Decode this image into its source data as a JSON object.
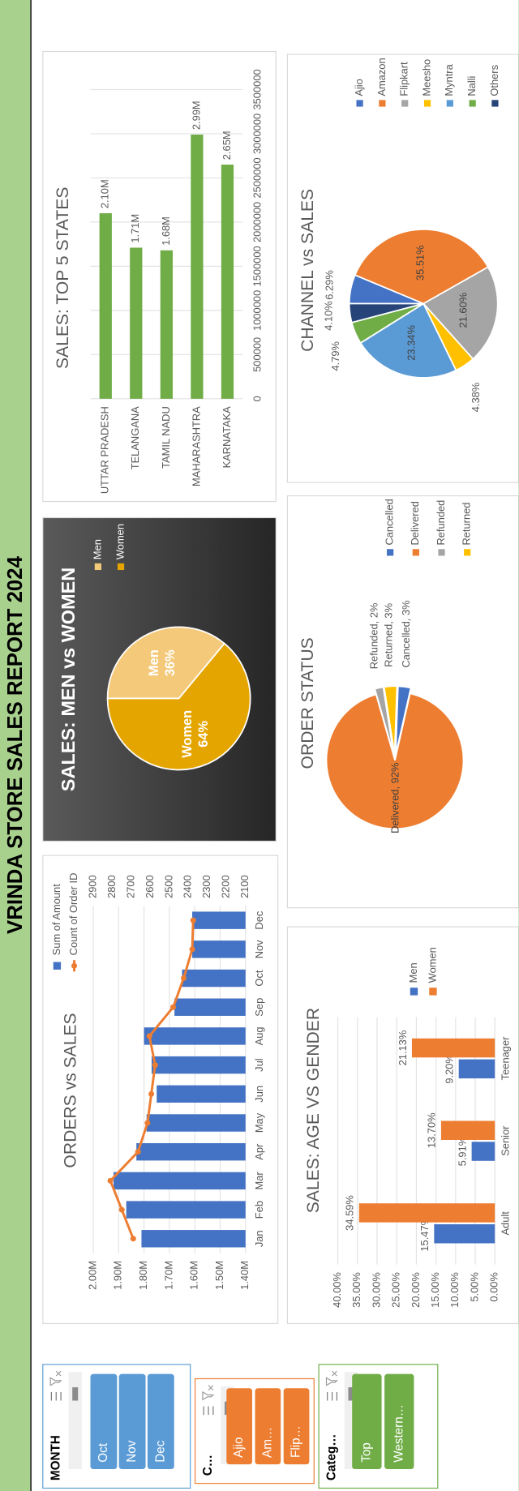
{
  "header": {
    "title": "VRINDA STORE SALES REPORT 2024"
  },
  "chart_data": [
    {
      "type": "combo",
      "title": "ORDERS vs SALES",
      "categories": [
        "Jan",
        "Feb",
        "Mar",
        "Apr",
        "May",
        "Jun",
        "Jul",
        "Aug",
        "Sep",
        "Oct",
        "Nov",
        "Dec"
      ],
      "series": [
        {
          "name": "Sum of Amount",
          "type": "bar",
          "color": "#4472c4",
          "values": [
            1810000,
            1870000,
            1920000,
            1830000,
            1790000,
            1750000,
            1770000,
            1800000,
            1680000,
            1650000,
            1610000,
            1610000
          ]
        },
        {
          "name": "Count of Order ID",
          "type": "line",
          "axis": "y2",
          "color": "#ed7d31",
          "values": [
            2690,
            2750,
            2810,
            2665,
            2615,
            2595,
            2575,
            2605,
            2480,
            2425,
            2380,
            2375
          ]
        }
      ],
      "ylim": [
        1400000,
        2000000
      ],
      "yticks": [
        {
          "value": 1400000,
          "label": "1.40M"
        },
        {
          "value": 1500000,
          "label": "1.50M"
        },
        {
          "value": 1600000,
          "label": "1.60M"
        },
        {
          "value": 1700000,
          "label": "1.70M"
        },
        {
          "value": 1800000,
          "label": "1.80M"
        },
        {
          "value": 1900000,
          "label": "1.90M"
        },
        {
          "value": 2000000,
          "label": "2.00M"
        }
      ],
      "y2lim": [
        2100,
        2900
      ],
      "y2ticks": [
        2100,
        2200,
        2300,
        2400,
        2500,
        2600,
        2700,
        2800,
        2900
      ],
      "grid": true
    },
    {
      "type": "pie",
      "title": "SALES: MEN vs WOMEN",
      "categories": [
        "Men",
        "Women"
      ],
      "values": [
        36,
        64
      ],
      "value_labels": [
        "36%",
        "64%"
      ],
      "colors": [
        "#f5c97a",
        "#e5a500"
      ]
    },
    {
      "type": "hbar",
      "title": "SALES: TOP 5 STATES",
      "categories": [
        "UTTAR PRADESH",
        "TELANGANA",
        "TAMIL NADU",
        "MAHARASHTRA",
        "KARNATAKA"
      ],
      "values": [
        2100000,
        1710000,
        1680000,
        2990000,
        2650000
      ],
      "value_labels": [
        "2.10M",
        "1.71M",
        "1.68M",
        "2.99M",
        "2.65M"
      ],
      "color": "#70ad47",
      "xlim": [
        0,
        3500000
      ],
      "xticks": [
        0,
        500000,
        1000000,
        1500000,
        2000000,
        2500000,
        3000000,
        3500000
      ],
      "grid": true
    },
    {
      "type": "bar",
      "title": "SALES: AGE VS GENDER",
      "categories": [
        "Adult",
        "Senior",
        "Teenager"
      ],
      "series": [
        {
          "name": "Men",
          "color": "#4472c4",
          "values": [
            15.47,
            5.91,
            9.2
          ],
          "value_labels": [
            "15.47%",
            "5.91%",
            "9.20%"
          ]
        },
        {
          "name": "Women",
          "color": "#ed7d31",
          "values": [
            34.59,
            13.7,
            21.13
          ],
          "value_labels": [
            "34.59%",
            "13.70%",
            "21.13%"
          ]
        }
      ],
      "ylim": [
        0,
        40
      ],
      "yticks": [
        {
          "value": 0,
          "label": "0.00%"
        },
        {
          "value": 5,
          "label": "5.00%"
        },
        {
          "value": 10,
          "label": "10.00%"
        },
        {
          "value": 15,
          "label": "15.00%"
        },
        {
          "value": 20,
          "label": "20.00%"
        },
        {
          "value": 25,
          "label": "25.00%"
        },
        {
          "value": 30,
          "label": "30.00%"
        },
        {
          "value": 35,
          "label": "35.00%"
        },
        {
          "value": 40,
          "label": "40.00%"
        }
      ],
      "grid": true
    },
    {
      "type": "pie",
      "title": "ORDER STATUS",
      "categories": [
        "Cancelled",
        "Delivered",
        "Refunded",
        "Returned"
      ],
      "values": [
        3,
        92,
        2,
        3
      ],
      "value_labels": [
        "Cancelled, 3%",
        "Delivered, 92%",
        "Refunded, 2%",
        "Returned, 3%"
      ],
      "colors": [
        "#4472c4",
        "#ed7d31",
        "#a5a5a5",
        "#ffc000"
      ]
    },
    {
      "type": "pie",
      "title": "CHANNEL vs SALES",
      "categories": [
        "Ajio",
        "Amazon",
        "Flipkart",
        "Meesho",
        "Myntra",
        "Nalli",
        "Others"
      ],
      "values": [
        6.29,
        35.51,
        21.6,
        4.38,
        23.34,
        4.79,
        4.1
      ],
      "value_labels": [
        "6.29%",
        "35.51%",
        "21.60%",
        "4.38%",
        "23.34%",
        "4.79%",
        "4.10%"
      ],
      "colors": [
        "#4472c4",
        "#ed7d31",
        "#a5a5a5",
        "#ffc000",
        "#5b9bd5",
        "#70ad47",
        "#264478"
      ]
    }
  ],
  "slicers": [
    {
      "title": "MONTH",
      "items": [
        "Oct",
        "Nov",
        "Dec"
      ]
    },
    {
      "title": "C…",
      "items": [
        "Ajio",
        "Am…",
        "Flip…"
      ]
    },
    {
      "title": "Categ…",
      "items": [
        "Top",
        "Western…"
      ]
    }
  ]
}
